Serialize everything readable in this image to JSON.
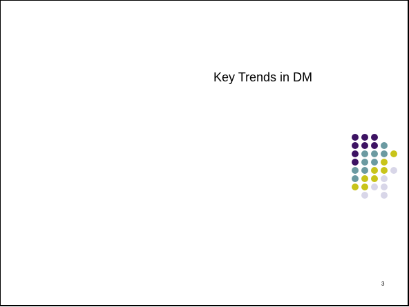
{
  "slide": {
    "title": "Key Trends in DM",
    "page_number": "3"
  },
  "decoration": {
    "dot_colors": {
      "purple": "#3d1363",
      "teal": "#6b9aa1",
      "yellow": "#c8c41a",
      "lavender": "#d8d6e8"
    },
    "grid": [
      [
        "purple",
        "purple",
        "purple",
        null,
        null
      ],
      [
        "purple",
        "purple",
        "purple",
        "teal",
        null
      ],
      [
        "purple",
        "teal",
        "teal",
        "teal",
        "yellow"
      ],
      [
        "purple",
        "teal",
        "teal",
        "yellow",
        null
      ],
      [
        "teal",
        "teal",
        "yellow",
        "yellow",
        "lavender"
      ],
      [
        "teal",
        "yellow",
        "yellow",
        "lavender",
        null
      ],
      [
        "yellow",
        "yellow",
        "lavender",
        "lavender",
        null
      ],
      [
        null,
        "lavender",
        null,
        "lavender",
        null
      ]
    ]
  }
}
